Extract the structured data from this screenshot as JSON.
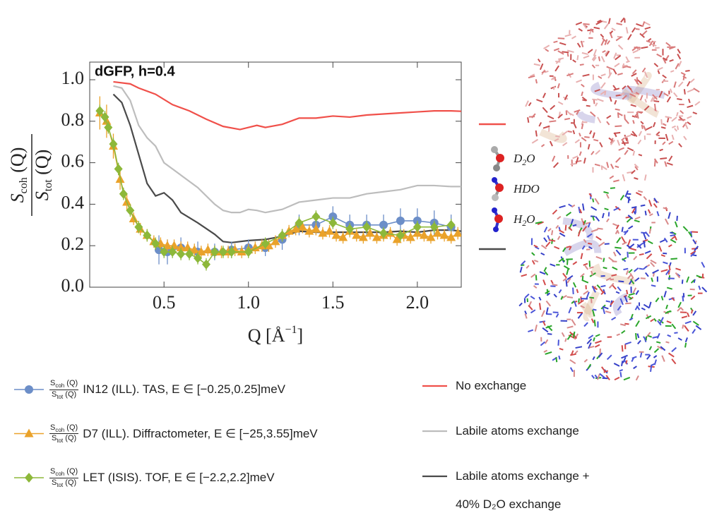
{
  "chart_data": {
    "type": "line",
    "title": "dGFP, h=0.4",
    "ylabel": {
      "numerator": {
        "main": "S",
        "sub": "coh",
        "tail": " (Q)"
      },
      "denominator": {
        "main": "S",
        "sub": "tot",
        "tail": " (Q)"
      }
    },
    "xlabel": {
      "main": "Q [Å",
      "sup": "−1",
      "tail": "]"
    },
    "xlim": [
      0.06,
      2.26
    ],
    "ylim": [
      0,
      1.085
    ],
    "xticks": [
      0.5,
      {
        "value": 1,
        "label": "1.0"
      },
      1.5,
      {
        "value": 2,
        "label": "2.0"
      }
    ],
    "yticks": [
      {
        "value": 0,
        "label": "0.0"
      },
      0.2,
      0.4,
      0.6,
      0.8,
      {
        "value": 1,
        "label": "1.0"
      }
    ],
    "series": [
      {
        "name": "No exchange",
        "color": "#f0504a",
        "x": [
          0.2,
          0.3,
          0.35,
          0.45,
          0.55,
          0.65,
          0.75,
          0.85,
          0.95,
          1.05,
          1.1,
          1.2,
          1.3,
          1.4,
          1.5,
          1.6,
          1.7,
          1.8,
          1.9,
          2.0,
          2.1,
          2.2,
          2.26
        ],
        "values": [
          0.99,
          0.98,
          0.96,
          0.93,
          0.88,
          0.85,
          0.81,
          0.775,
          0.76,
          0.78,
          0.77,
          0.785,
          0.815,
          0.815,
          0.825,
          0.82,
          0.83,
          0.835,
          0.84,
          0.845,
          0.85,
          0.85,
          0.848
        ]
      },
      {
        "name": "Labile atoms exchange",
        "color": "#bdbdbd",
        "x": [
          0.2,
          0.25,
          0.3,
          0.35,
          0.4,
          0.45,
          0.5,
          0.55,
          0.6,
          0.7,
          0.8,
          0.85,
          0.9,
          0.95,
          1.0,
          1.05,
          1.1,
          1.2,
          1.3,
          1.4,
          1.5,
          1.6,
          1.7,
          1.8,
          1.9,
          2.0,
          2.1,
          2.2,
          2.26
        ],
        "values": [
          0.97,
          0.96,
          0.9,
          0.78,
          0.72,
          0.68,
          0.6,
          0.57,
          0.54,
          0.48,
          0.4,
          0.37,
          0.36,
          0.36,
          0.375,
          0.37,
          0.36,
          0.375,
          0.41,
          0.42,
          0.43,
          0.43,
          0.45,
          0.46,
          0.47,
          0.49,
          0.49,
          0.485,
          0.485
        ]
      },
      {
        "name": "Labile atoms exchange + 40% D₂O exchange",
        "color": "#4a4a4a",
        "x": [
          0.2,
          0.25,
          0.3,
          0.35,
          0.4,
          0.45,
          0.5,
          0.55,
          0.6,
          0.7,
          0.8,
          0.85,
          0.9,
          1.0,
          1.1,
          1.2,
          1.3,
          1.4,
          1.5,
          1.6,
          1.7,
          1.8,
          1.9,
          2.0,
          2.1,
          2.2,
          2.26
        ],
        "values": [
          0.93,
          0.89,
          0.78,
          0.64,
          0.5,
          0.44,
          0.455,
          0.42,
          0.36,
          0.31,
          0.255,
          0.22,
          0.215,
          0.225,
          0.23,
          0.245,
          0.27,
          0.265,
          0.265,
          0.265,
          0.265,
          0.265,
          0.27,
          0.265,
          0.275,
          0.275,
          0.27
        ]
      },
      {
        "name": "IN12 (ILL). TAS, E ∈ [−0.25,0.25]meV",
        "color": "#6c8ec8",
        "marker": "circle",
        "x": [
          0.47,
          0.52,
          0.6,
          0.7,
          0.8,
          0.9,
          1.0,
          1.1,
          1.2,
          1.3,
          1.4,
          1.5,
          1.6,
          1.7,
          1.8,
          1.9,
          2.0,
          2.1,
          2.2
        ],
        "values": [
          0.18,
          0.17,
          0.19,
          0.17,
          0.17,
          0.18,
          0.19,
          0.19,
          0.23,
          0.3,
          0.3,
          0.34,
          0.3,
          0.3,
          0.3,
          0.32,
          0.32,
          0.31,
          0.29
        ],
        "errors": [
          0.07,
          0.06,
          0.05,
          0.05,
          0.04,
          0.04,
          0.04,
          0.04,
          0.05,
          0.05,
          0.05,
          0.05,
          0.05,
          0.05,
          0.05,
          0.06,
          0.06,
          0.06,
          0.06
        ]
      },
      {
        "name": "D7 (ILL). Diffractometer, E ∈ [−25,3.55]meV",
        "color": "#eaa22a",
        "marker": "triangle",
        "x": [
          0.12,
          0.16,
          0.2,
          0.24,
          0.28,
          0.32,
          0.36,
          0.4,
          0.44,
          0.48,
          0.52,
          0.56,
          0.6,
          0.64,
          0.68,
          0.72,
          0.76,
          0.8,
          0.84,
          0.88,
          0.92,
          0.96,
          1.0,
          1.04,
          1.08,
          1.12,
          1.16,
          1.2,
          1.24,
          1.28,
          1.32,
          1.36,
          1.4,
          1.44,
          1.48,
          1.52,
          1.56,
          1.6,
          1.64,
          1.68,
          1.72,
          1.76,
          1.8,
          1.84,
          1.88,
          1.92,
          1.96,
          2.0,
          2.04,
          2.08,
          2.12,
          2.16,
          2.2,
          2.24
        ],
        "values": [
          0.84,
          0.8,
          0.68,
          0.52,
          0.41,
          0.33,
          0.28,
          0.25,
          0.22,
          0.21,
          0.2,
          0.2,
          0.19,
          0.19,
          0.18,
          0.17,
          0.18,
          0.17,
          0.17,
          0.17,
          0.18,
          0.17,
          0.18,
          0.19,
          0.2,
          0.2,
          0.22,
          0.25,
          0.27,
          0.28,
          0.29,
          0.27,
          0.28,
          0.26,
          0.27,
          0.25,
          0.24,
          0.27,
          0.25,
          0.24,
          0.26,
          0.24,
          0.25,
          0.26,
          0.23,
          0.25,
          0.24,
          0.26,
          0.25,
          0.24,
          0.26,
          0.25,
          0.24,
          0.26
        ],
        "errors": [
          0.08,
          0.08,
          0.06,
          0.05,
          0.04,
          0.03,
          0.03,
          0.03,
          0.03,
          0.03,
          0.03,
          0.03,
          0.03,
          0.03,
          0.03,
          0.03,
          0.03,
          0.03,
          0.03,
          0.03,
          0.03,
          0.03,
          0.03,
          0.03,
          0.03,
          0.03,
          0.03,
          0.03,
          0.03,
          0.03,
          0.03,
          0.03,
          0.03,
          0.03,
          0.03,
          0.03,
          0.03,
          0.03,
          0.03,
          0.03,
          0.03,
          0.03,
          0.03,
          0.03,
          0.03,
          0.03,
          0.03,
          0.03,
          0.03,
          0.03,
          0.03,
          0.03,
          0.03,
          0.03
        ]
      },
      {
        "name": "LET (ISIS). TOF, E ∈ [−2.2,2.2]meV",
        "color": "#8db83a",
        "marker": "diamond",
        "x": [
          0.12,
          0.15,
          0.17,
          0.2,
          0.23,
          0.26,
          0.3,
          0.35,
          0.4,
          0.45,
          0.5,
          0.55,
          0.6,
          0.65,
          0.7,
          0.75,
          0.8,
          0.85,
          0.9,
          1.0,
          1.1,
          1.2,
          1.3,
          1.4,
          1.5,
          1.6,
          1.7,
          1.8,
          1.9,
          2.0,
          2.1,
          2.2
        ],
        "values": [
          0.85,
          0.82,
          0.77,
          0.69,
          0.57,
          0.45,
          0.37,
          0.29,
          0.25,
          0.21,
          0.17,
          0.17,
          0.16,
          0.16,
          0.14,
          0.11,
          0.17,
          0.17,
          0.17,
          0.17,
          0.21,
          0.25,
          0.31,
          0.34,
          0.31,
          0.28,
          0.29,
          0.26,
          0.25,
          0.29,
          0.29,
          0.3
        ],
        "errors": [
          0.03,
          0.03,
          0.03,
          0.03,
          0.03,
          0.03,
          0.03,
          0.03,
          0.03,
          0.03,
          0.03,
          0.03,
          0.03,
          0.03,
          0.03,
          0.03,
          0.03,
          0.03,
          0.03,
          0.03,
          0.03,
          0.03,
          0.03,
          0.03,
          0.03,
          0.03,
          0.03,
          0.03,
          0.03,
          0.03,
          0.03,
          0.03
        ]
      }
    ],
    "molecules": [
      {
        "main": "D",
        "sub": "2",
        "tail": "O"
      },
      {
        "main": "HDO"
      },
      {
        "main": "H",
        "sub": "2",
        "tail": "O"
      }
    ]
  }
}
